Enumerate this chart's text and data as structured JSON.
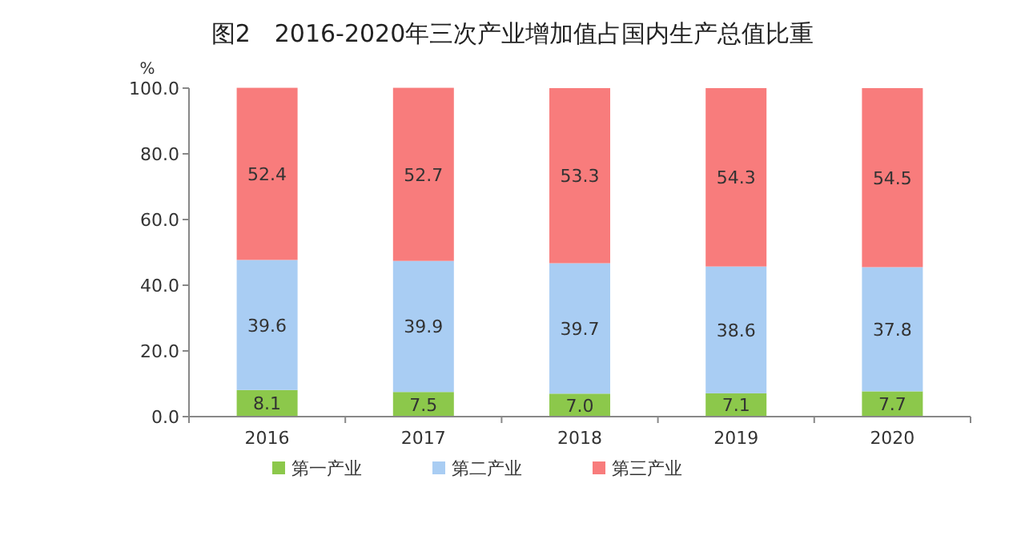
{
  "chart_data": {
    "type": "bar",
    "stacked": true,
    "title": "图2　2016-2020年三次产业增加值占国内生产总值比重",
    "ylabel": "%",
    "categories": [
      "2016",
      "2017",
      "2018",
      "2019",
      "2020"
    ],
    "series": [
      {
        "name": "第一产业",
        "color": "#8cc84b",
        "values": [
          8.1,
          7.5,
          7.0,
          7.1,
          7.7
        ],
        "value_labels": [
          "8.1",
          "7.5",
          "7.0",
          "7.1",
          "7.7"
        ]
      },
      {
        "name": "第二产业",
        "color": "#a9cdf3",
        "values": [
          39.6,
          39.9,
          39.7,
          38.6,
          37.8
        ],
        "value_labels": [
          "39.6",
          "39.9",
          "39.7",
          "38.6",
          "37.8"
        ]
      },
      {
        "name": "第三产业",
        "color": "#f87c7c",
        "values": [
          52.4,
          52.7,
          53.3,
          54.3,
          54.5
        ],
        "value_labels": [
          "52.4",
          "52.7",
          "53.3",
          "54.3",
          "54.5"
        ]
      }
    ],
    "ylim": [
      0,
      100
    ],
    "yticks": [
      {
        "value": 0,
        "label": "0.0"
      },
      {
        "value": 20,
        "label": "20.0"
      },
      {
        "value": 40,
        "label": "40.0"
      },
      {
        "value": 60,
        "label": "60.0"
      },
      {
        "value": 80,
        "label": "80.0"
      },
      {
        "value": 100,
        "label": "100.0"
      }
    ],
    "legend": "bottom"
  }
}
